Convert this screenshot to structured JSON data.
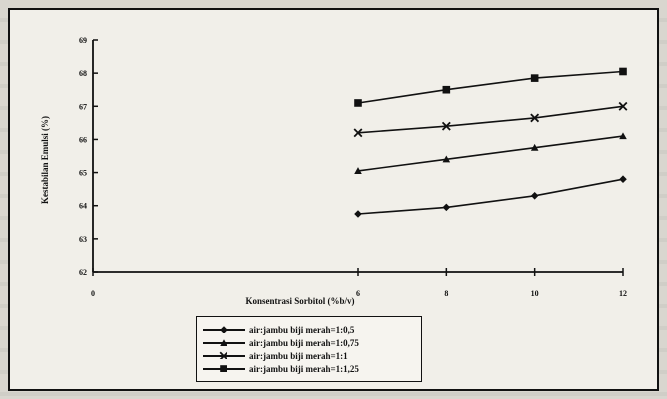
{
  "chart_data": {
    "type": "line",
    "title": "",
    "xlabel": "Konsentrasi Sorbitol (%b/v)",
    "ylabel": "Kestabilan Emulsi (%)",
    "xlim": [
      0,
      12
    ],
    "ylim": [
      62,
      69
    ],
    "x_ticks": [
      "0",
      "6",
      "8",
      "10",
      "12"
    ],
    "y_ticks": [
      "62",
      "63",
      "64",
      "65",
      "66",
      "67",
      "68",
      "69"
    ],
    "x": [
      6,
      8,
      10,
      12
    ],
    "grid": false,
    "legend_position": "bottom",
    "series": [
      {
        "name": "air:jambu biji merah=1:0,5",
        "marker": "diamond",
        "values": [
          63.75,
          63.95,
          64.3,
          64.8
        ]
      },
      {
        "name": "air:jambu biji merah=1:0,75",
        "marker": "triangle",
        "values": [
          65.05,
          65.4,
          65.75,
          66.1
        ]
      },
      {
        "name": "air:jambu biji merah=1:1",
        "marker": "x",
        "values": [
          66.2,
          66.4,
          66.65,
          67.0
        ]
      },
      {
        "name": "air:jambu biji merah=1:1,25",
        "marker": "square",
        "values": [
          67.1,
          67.5,
          67.85,
          68.05
        ]
      }
    ]
  }
}
